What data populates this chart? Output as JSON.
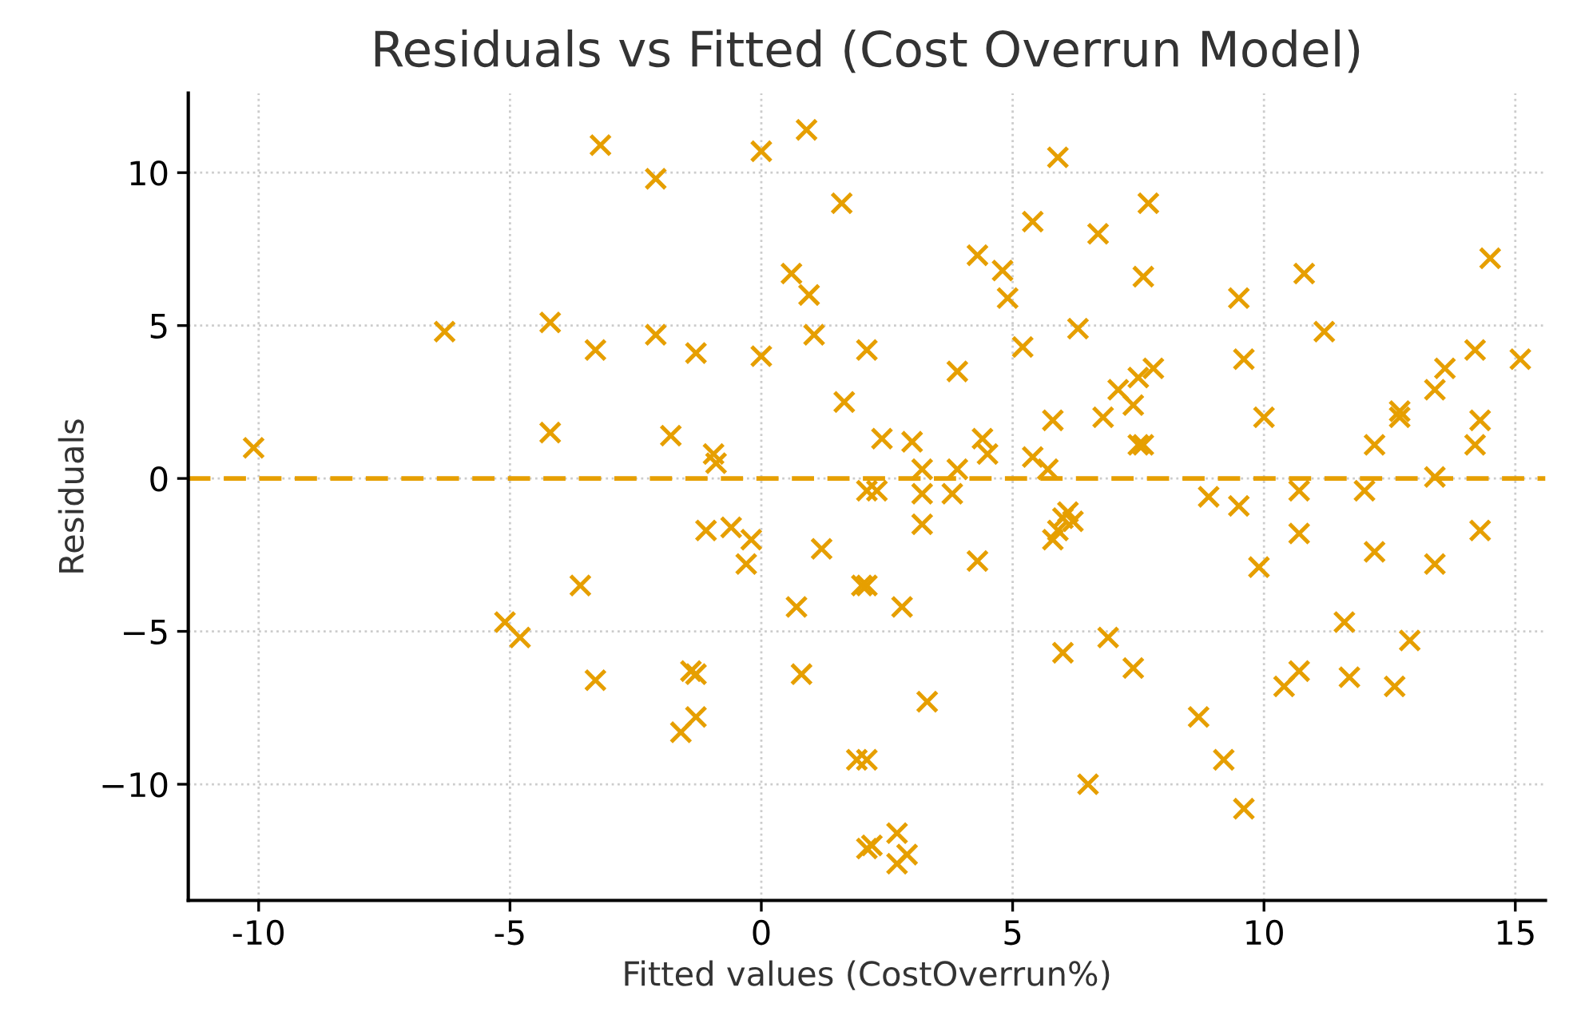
{
  "chart_data": {
    "type": "scatter",
    "title": "Residuals vs Fitted (Cost Overrun Model)",
    "xlabel": "Fitted values (CostOverrun%)",
    "ylabel": "Residuals",
    "xlim": [
      -11.4,
      15.6
    ],
    "ylim": [
      -13.8,
      12.6
    ],
    "xticks": [
      -10,
      -5,
      0,
      5,
      10,
      15
    ],
    "yticks": [
      {
        "value": -10,
        "label": "−10"
      },
      {
        "value": -5,
        "label": "−5"
      },
      0,
      5,
      10
    ],
    "grid": true,
    "marker": "cross",
    "ref_lines": [
      {
        "axis": "y",
        "value": 0,
        "label": null,
        "color": "#e69f00",
        "line_style": "dashed"
      }
    ],
    "series": [
      {
        "color": "#e69f00",
        "x": [
          -10.1,
          -6.3,
          -4.2,
          -4.2,
          -3.3,
          -3.2,
          -2.1,
          -2.1,
          -1.8,
          -1.3,
          -0.95,
          -0.9,
          0.0,
          0.9,
          1.6,
          0.6,
          0.95,
          1.05,
          0.0,
          1.65,
          2.1,
          5.9,
          5.4,
          4.3,
          4.8,
          4.9,
          5.2,
          3.9,
          6.3,
          7.7,
          6.7,
          7.6,
          9.5,
          10.8,
          14.5,
          11.2,
          9.6,
          14.2,
          15.1,
          13.6,
          13.4,
          12.7,
          12.7,
          14.3,
          14.2,
          12.2,
          10.0,
          13.4,
          5.8,
          6.8,
          7.1,
          7.4,
          7.5,
          7.8,
          7.5,
          7.6,
          2.4,
          3.0,
          4.4,
          4.5,
          5.4,
          5.7,
          3.2,
          3.9,
          2.3,
          3.2,
          3.8,
          3.2,
          4.3,
          2.1,
          2.8,
          3.3,
          2.1,
          2.7,
          2.2,
          2.9,
          2.7,
          6.1,
          6.2,
          5.9,
          5.8,
          6.0,
          8.9,
          9.5,
          10.7,
          10.7,
          12.0,
          12.2,
          13.4,
          14.3,
          9.9,
          6.0,
          6.9,
          7.4,
          11.6,
          12.9,
          10.4,
          10.7,
          11.7,
          12.6,
          8.7,
          9.2,
          9.6,
          6.5,
          -1.1,
          -0.6,
          -0.2,
          -0.3,
          1.2,
          2.0,
          -3.6,
          0.7,
          -5.1,
          -4.8,
          -3.3,
          -1.4,
          -1.3,
          0.8,
          -1.3,
          -1.6,
          1.9,
          2.1,
          2.1
        ],
        "values": [
          1.0,
          4.8,
          5.1,
          1.5,
          4.2,
          10.9,
          9.8,
          4.7,
          1.4,
          4.1,
          0.8,
          0.5,
          10.7,
          11.4,
          9.0,
          6.7,
          6.0,
          4.7,
          4.0,
          2.5,
          4.2,
          10.5,
          8.4,
          7.3,
          6.8,
          5.9,
          4.3,
          3.5,
          4.9,
          9.0,
          8.0,
          6.6,
          5.9,
          6.7,
          7.2,
          4.8,
          3.9,
          4.2,
          3.9,
          3.6,
          2.9,
          2.2,
          2.0,
          1.9,
          1.1,
          1.1,
          2.0,
          0.05,
          1.9,
          2.0,
          2.9,
          2.4,
          3.3,
          3.6,
          1.1,
          1.1,
          1.3,
          1.2,
          1.3,
          0.8,
          0.7,
          0.3,
          0.3,
          0.3,
          -0.4,
          -0.5,
          -0.5,
          -1.5,
          -2.7,
          -3.5,
          -4.2,
          -7.3,
          -9.2,
          -11.6,
          -12.0,
          -12.3,
          -12.6,
          -1.1,
          -1.4,
          -1.7,
          -2.0,
          -1.3,
          -0.6,
          -0.9,
          -0.4,
          -1.8,
          -0.4,
          -2.4,
          -2.8,
          -1.7,
          -2.9,
          -5.7,
          -5.2,
          -6.2,
          -4.7,
          -5.3,
          -6.8,
          -6.3,
          -6.5,
          -6.8,
          -7.8,
          -9.2,
          -10.8,
          -10.0,
          -1.7,
          -1.6,
          -2.0,
          -2.8,
          -2.3,
          -3.5,
          -3.5,
          -4.2,
          -4.7,
          -5.2,
          -6.6,
          -6.3,
          -6.4,
          -6.4,
          -7.8,
          -8.3,
          -9.2,
          -12.1,
          -0.4
        ]
      }
    ]
  }
}
